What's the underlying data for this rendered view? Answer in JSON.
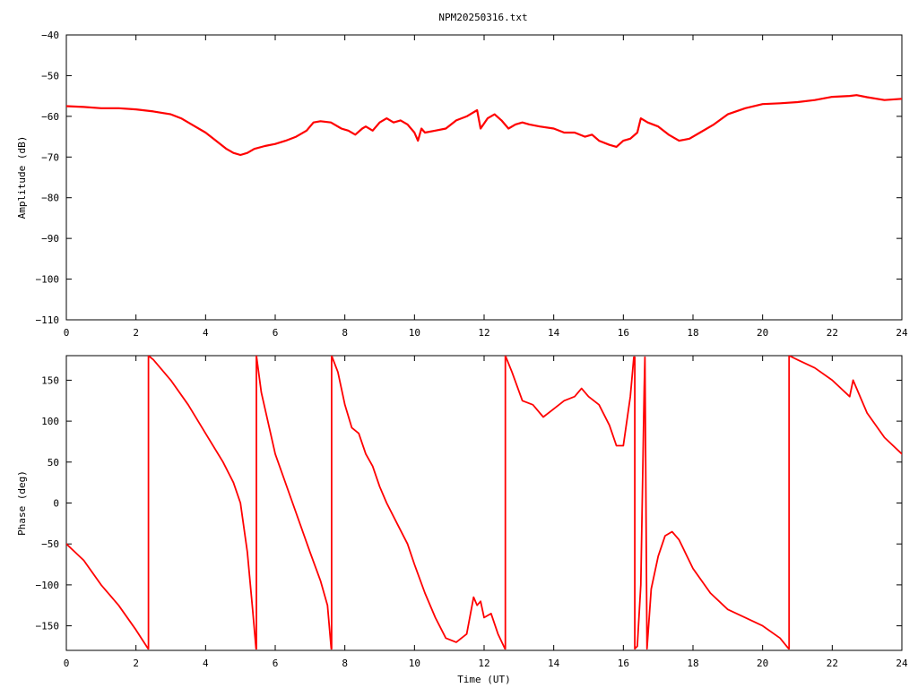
{
  "title": "NPM20250316.txt",
  "colors": {
    "trace": "#ff0000",
    "axis": "#000000",
    "background": "#ffffff"
  },
  "chart_data": [
    {
      "type": "line",
      "ylabel": "Amplitude (dB)",
      "xlabel": "",
      "xlim": [
        0,
        24
      ],
      "ylim": [
        -110,
        -40
      ],
      "xticks": [
        0,
        2,
        4,
        6,
        8,
        10,
        12,
        14,
        16,
        18,
        20,
        22,
        24
      ],
      "yticks": [
        -110,
        -100,
        -90,
        -80,
        -70,
        -60,
        -50,
        -40
      ],
      "series": [
        {
          "x": [
            0,
            0.5,
            1,
            1.5,
            2,
            2.5,
            3,
            3.3,
            3.6,
            4,
            4.3,
            4.6,
            4.8,
            5,
            5.2,
            5.4,
            5.7,
            6,
            6.3,
            6.6,
            6.9,
            7.1,
            7.3,
            7.6,
            7.9,
            8.1,
            8.3,
            8.5,
            8.6,
            8.8,
            9.0,
            9.2,
            9.4,
            9.6,
            9.8,
            10.0,
            10.1,
            10.2,
            10.3,
            10.6,
            10.9,
            11.2,
            11.5,
            11.8,
            11.9,
            12.1,
            12.3,
            12.5,
            12.7,
            12.9,
            13.1,
            13.3,
            13.6,
            14.0,
            14.3,
            14.6,
            14.9,
            15.1,
            15.3,
            15.6,
            15.8,
            16.0,
            16.2,
            16.4,
            16.5,
            16.7,
            17.0,
            17.3,
            17.6,
            17.9,
            18.2,
            18.6,
            19.0,
            19.5,
            20.0,
            20.5,
            21.0,
            21.5,
            22.0,
            22.5,
            22.7,
            23.0,
            23.5,
            24.0
          ],
          "y": [
            -57.5,
            -57.7,
            -58,
            -58,
            -58.3,
            -58.8,
            -59.5,
            -60.5,
            -62,
            -64,
            -66,
            -68,
            -69,
            -69.5,
            -69,
            -68,
            -67.3,
            -66.8,
            -66,
            -65,
            -63.5,
            -61.5,
            -61.2,
            -61.5,
            -63,
            -63.5,
            -64.5,
            -63,
            -62.5,
            -63.5,
            -61.5,
            -60.5,
            -61.5,
            -61,
            -62,
            -64,
            -66,
            -63,
            -64,
            -63.5,
            -63,
            -61,
            -60,
            -58.5,
            -63,
            -60.5,
            -59.5,
            -61,
            -63,
            -62,
            -61.5,
            -62,
            -62.5,
            -63,
            -64,
            -64,
            -65,
            -64.5,
            -66,
            -67,
            -67.5,
            -66,
            -65.5,
            -64,
            -60.5,
            -61.5,
            -62.5,
            -64.5,
            -66,
            -65.5,
            -64,
            -62,
            -59.5,
            -58,
            -57,
            -56.8,
            -56.5,
            -56,
            -55.2,
            -55,
            -54.8,
            -55.3,
            -56,
            -55.7
          ]
        }
      ]
    },
    {
      "type": "line",
      "ylabel": "Phase (deg)",
      "xlabel": "Time (UT)",
      "xlim": [
        0,
        24
      ],
      "ylim": [
        -180,
        180
      ],
      "xticks": [
        0,
        2,
        4,
        6,
        8,
        10,
        12,
        14,
        16,
        18,
        20,
        22,
        24
      ],
      "yticks": [
        -150,
        -100,
        -50,
        0,
        50,
        100,
        150
      ],
      "series": [
        {
          "x": [
            0,
            0.5,
            1,
            1.5,
            2,
            2.35,
            2.36,
            2.36,
            2.5,
            3,
            3.5,
            4,
            4.5,
            4.8,
            5.0,
            5.2,
            5.35,
            5.45,
            5.46,
            5.46,
            5.6,
            6.0,
            6.5,
            7.0,
            7.3,
            7.5,
            7.61,
            7.62,
            7.62,
            7.8,
            8.0,
            8.2,
            8.4,
            8.6,
            8.8,
            9.0,
            9.2,
            9.5,
            9.8,
            10.0,
            10.3,
            10.6,
            10.9,
            11.2,
            11.5,
            11.7,
            11.8,
            11.9,
            12.0,
            12.2,
            12.4,
            12.6,
            12.61,
            12.61,
            12.8,
            13.1,
            13.4,
            13.7,
            14.0,
            14.3,
            14.6,
            14.8,
            15.0,
            15.3,
            15.6,
            15.8,
            16.0,
            16.2,
            16.3,
            16.33,
            16.33,
            16.4,
            16.5,
            16.6,
            16.62,
            16.62,
            16.68,
            16.8,
            17.0,
            17.2,
            17.4,
            17.6,
            18.0,
            18.5,
            19.0,
            19.5,
            20.0,
            20.5,
            20.75,
            20.76,
            20.76,
            21.0,
            21.5,
            22.0,
            22.5,
            22.6,
            23.0,
            23.5,
            24.0
          ],
          "y": [
            -50,
            -70,
            -100,
            -125,
            -155,
            -178,
            -178,
            180,
            175,
            150,
            120,
            85,
            50,
            25,
            0,
            -60,
            -130,
            -178,
            -178,
            180,
            135,
            60,
            0,
            -60,
            -95,
            -125,
            -178,
            -178,
            180,
            160,
            120,
            92,
            85,
            60,
            45,
            20,
            0,
            -25,
            -50,
            -75,
            -110,
            -140,
            -165,
            -170,
            -160,
            -115,
            -125,
            -120,
            -140,
            -135,
            -160,
            -178,
            -178,
            180,
            160,
            125,
            120,
            105,
            115,
            125,
            130,
            140,
            130,
            120,
            95,
            70,
            70,
            130,
            178,
            178,
            -178,
            -175,
            -100,
            140,
            178,
            178,
            -178,
            -105,
            -65,
            -40,
            -35,
            -45,
            -80,
            -110,
            -130,
            -140,
            -150,
            -165,
            -178,
            -178,
            180,
            175,
            165,
            150,
            130,
            150,
            110,
            80,
            60
          ]
        }
      ]
    }
  ]
}
